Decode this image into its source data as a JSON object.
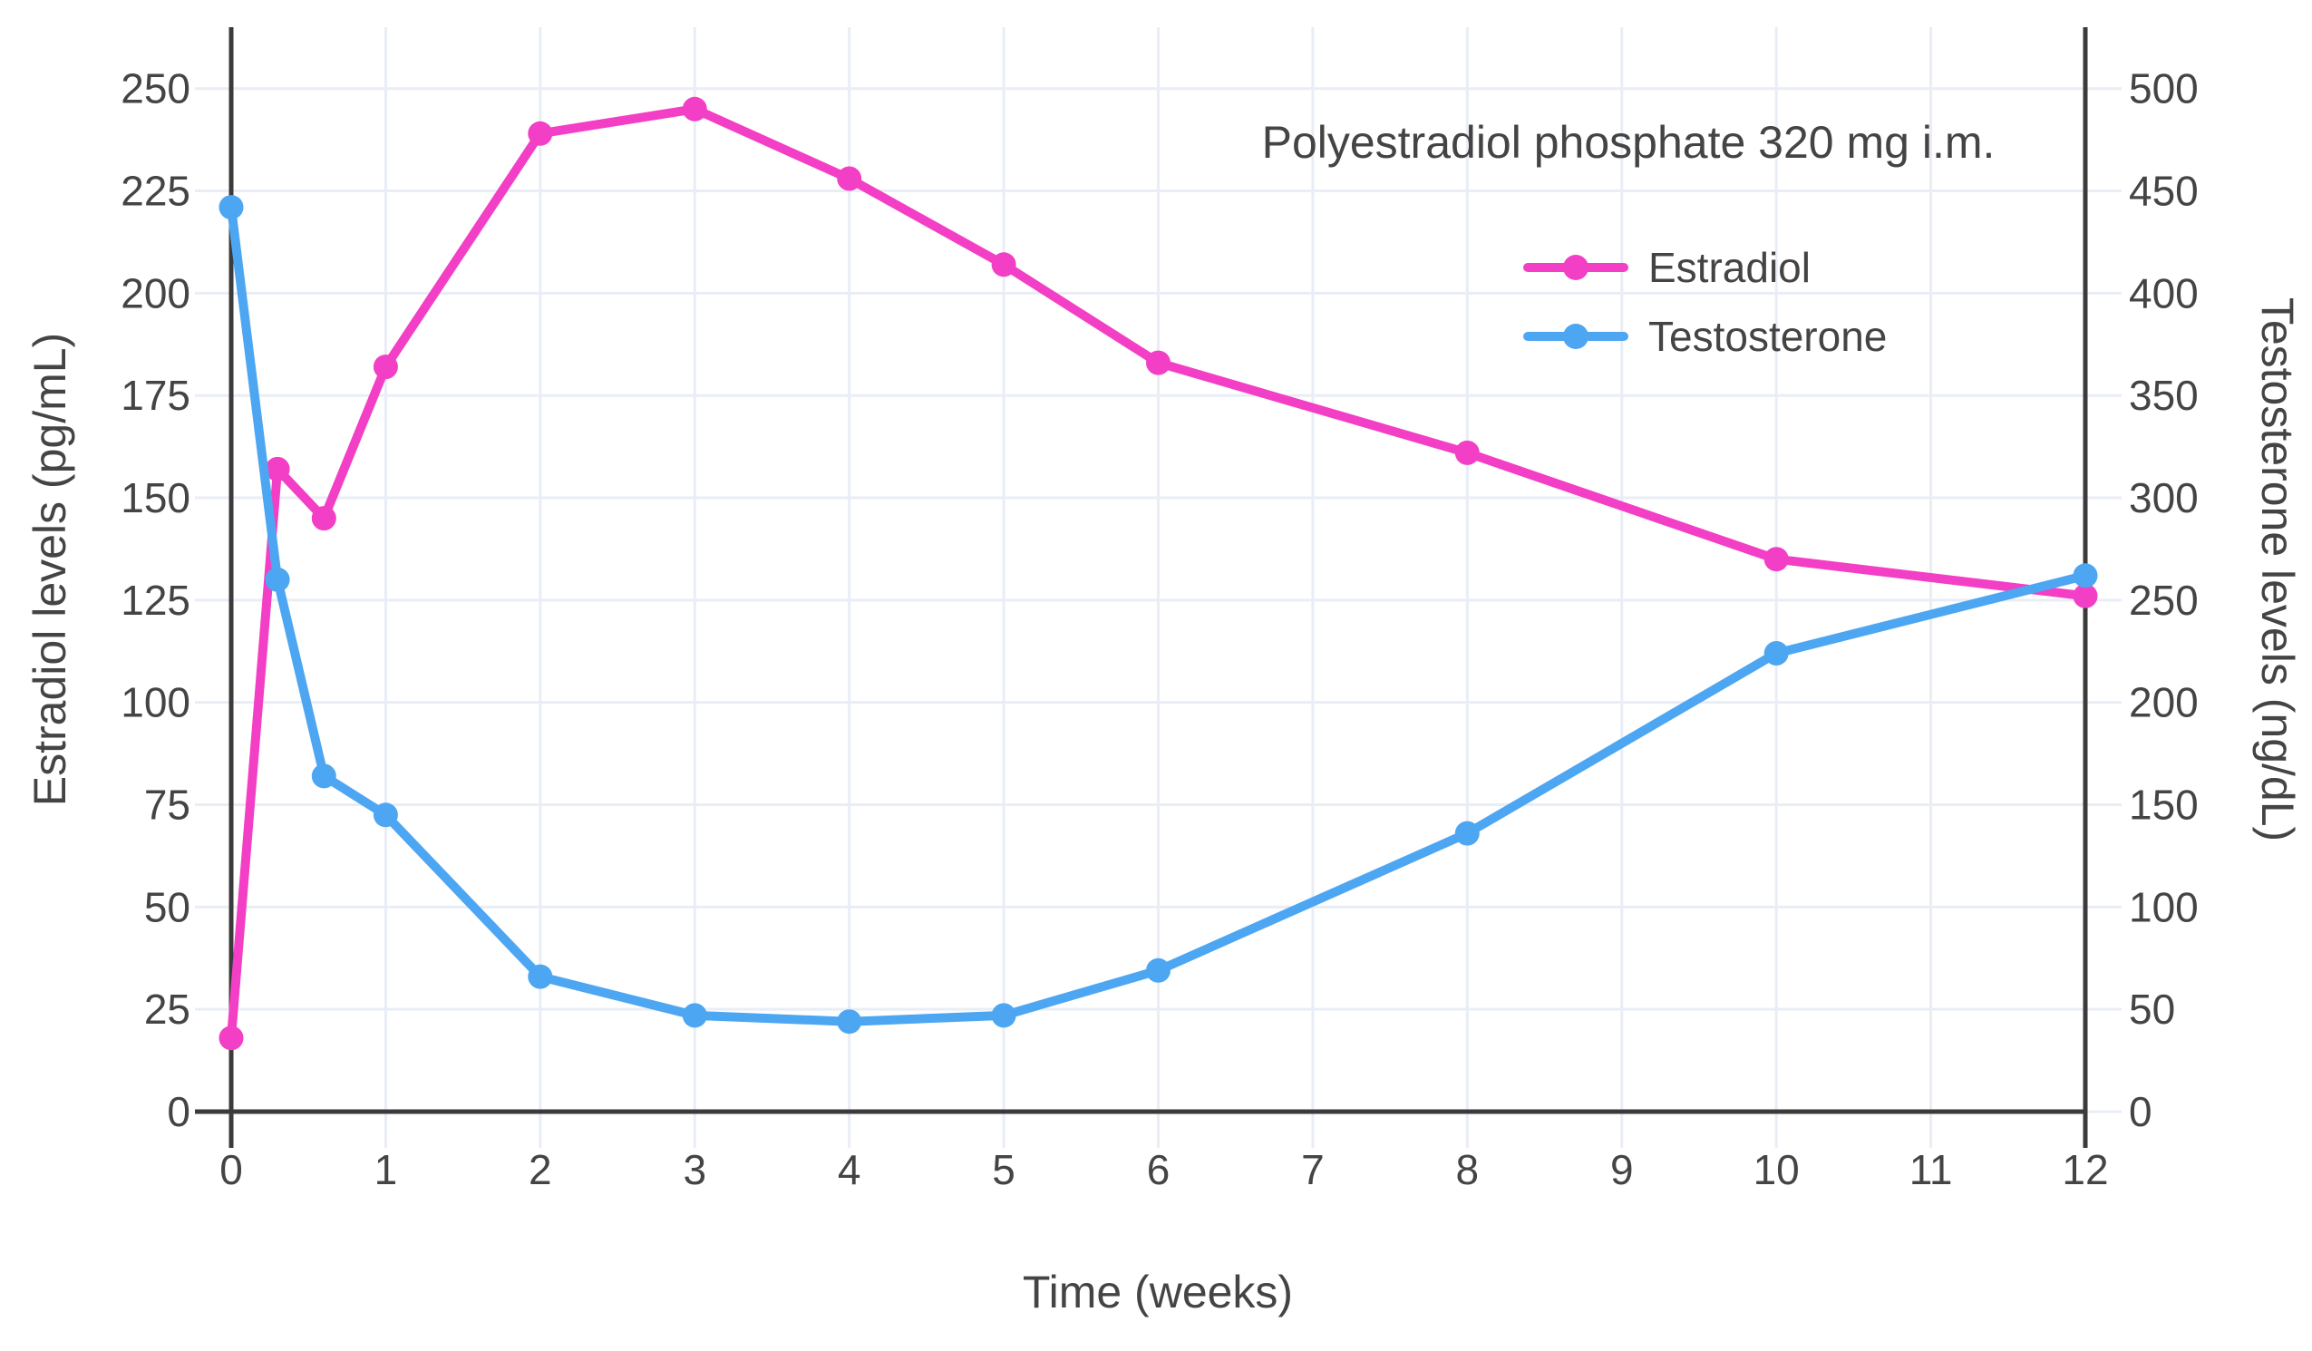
{
  "colors": {
    "estradiol": "#F23FC5",
    "testosterone": "#4DA6F2",
    "grid": "#E9EDF6",
    "axis_line": "#3B3B3B",
    "text": "#444444",
    "background": "#FFFFFF"
  },
  "chart_data": {
    "type": "line",
    "title": "Polyestradiol phosphate 320 mg i.m.",
    "xlabel": "Time (weeks)",
    "ylabel_left": "Estradiol levels (pg/mL)",
    "ylabel_right": "Testosterone levels (ng/dL)",
    "x": [
      0,
      0.3,
      0.6,
      1,
      2,
      3,
      4,
      5,
      6,
      8,
      10,
      12
    ],
    "series": [
      {
        "name": "Estradiol",
        "axis": "left",
        "unit": "pg/mL",
        "color": "#F23FC5",
        "values": [
          18,
          157,
          145,
          182,
          239,
          245,
          228,
          207,
          183,
          161,
          135,
          126
        ]
      },
      {
        "name": "Testosterone",
        "axis": "right",
        "unit": "ng/dL",
        "color": "#4DA6F2",
        "values": [
          442,
          260,
          164,
          145,
          66,
          47,
          44,
          47,
          69,
          136,
          224,
          262
        ]
      }
    ],
    "x_ticks": [
      0,
      1,
      2,
      3,
      4,
      5,
      6,
      7,
      8,
      9,
      10,
      11,
      12
    ],
    "y_left_ticks": [
      0,
      25,
      50,
      75,
      100,
      125,
      150,
      175,
      200,
      225,
      250
    ],
    "y_right_ticks": [
      0,
      50,
      100,
      150,
      200,
      250,
      300,
      350,
      400,
      450,
      500
    ],
    "x_range": [
      0,
      12
    ],
    "y_left_range": [
      0,
      265
    ],
    "y_right_range": [
      0,
      530
    ],
    "grid": true,
    "legend_position": "top-right",
    "legend_entries": [
      "Estradiol",
      "Testosterone"
    ]
  }
}
